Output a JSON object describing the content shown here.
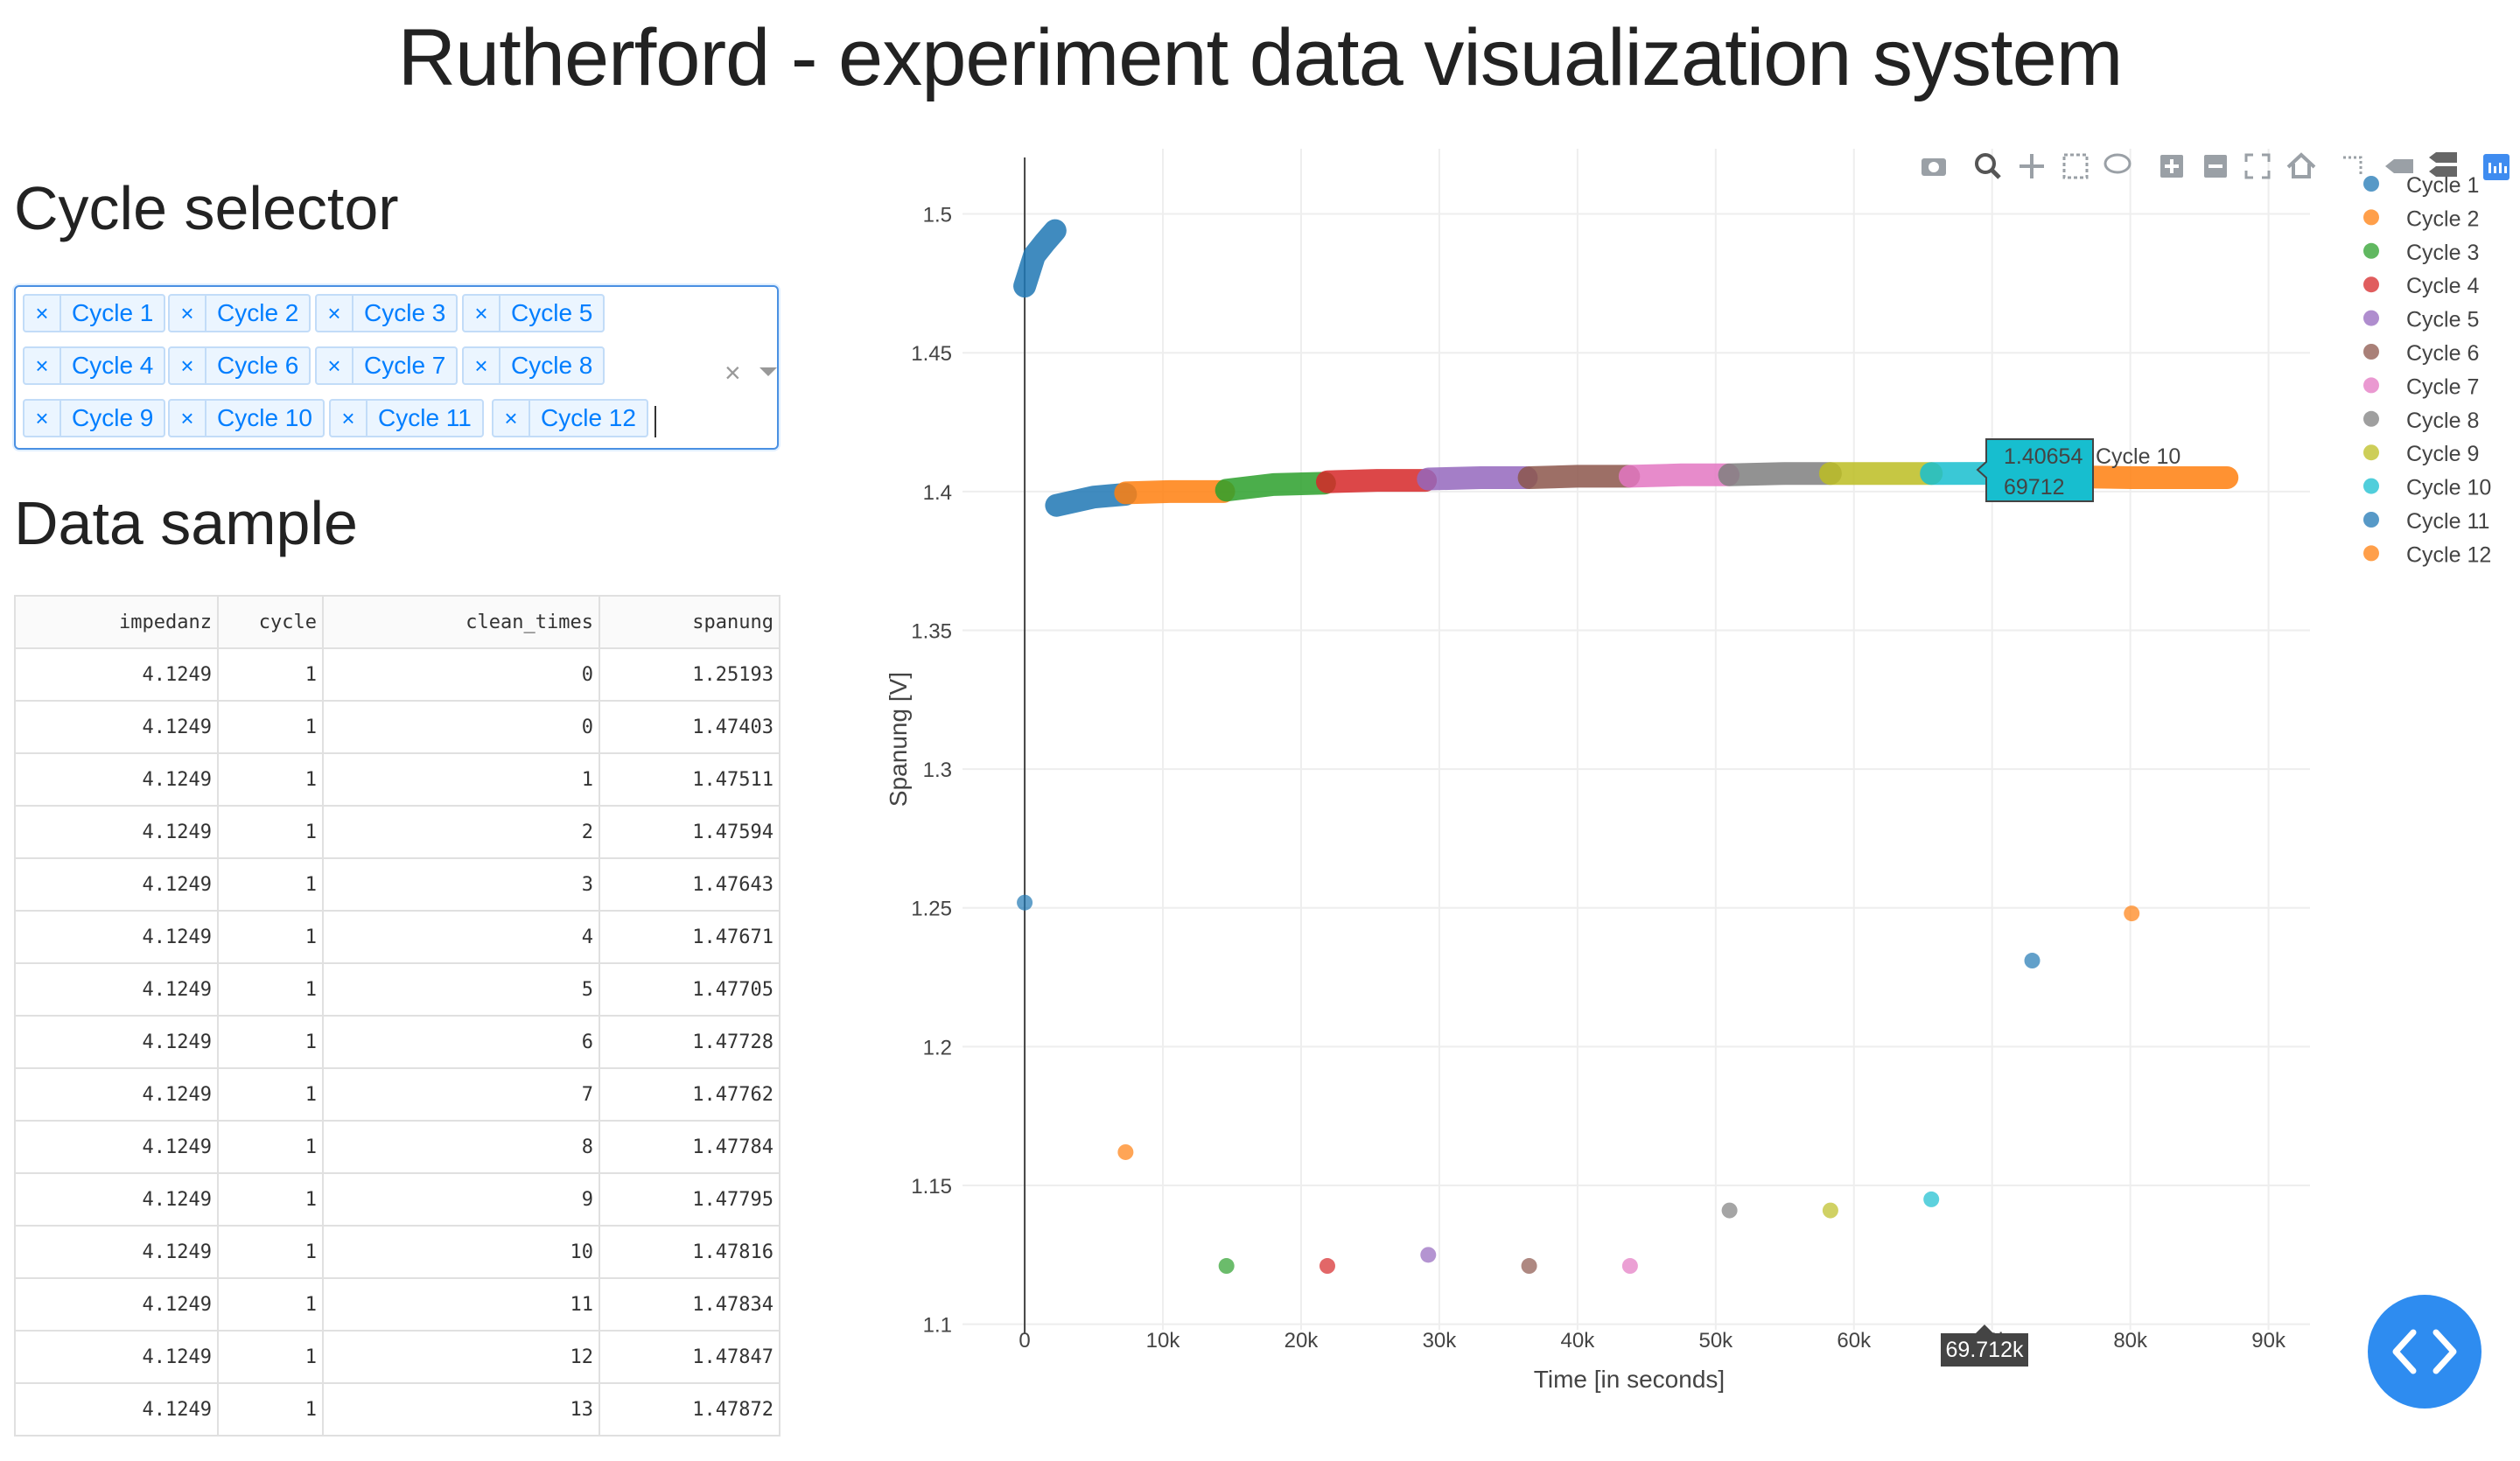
{
  "app_title": "Rutherford - experiment data visualization system",
  "cycle_selector": {
    "heading": "Cycle selector",
    "selected": [
      "Cycle 1",
      "Cycle 2",
      "Cycle 3",
      "Cycle 5",
      "Cycle 4",
      "Cycle 6",
      "Cycle 7",
      "Cycle 8",
      "Cycle 9",
      "Cycle 10",
      "Cycle 11",
      "Cycle 12"
    ],
    "remove_glyph": "×",
    "clear_glyph": "×"
  },
  "data_sample": {
    "heading": "Data sample",
    "columns": [
      "impedanz",
      "cycle",
      "clean_times",
      "spanung"
    ],
    "rows": [
      [
        "4.1249",
        "1",
        "0",
        "1.25193"
      ],
      [
        "4.1249",
        "1",
        "0",
        "1.47403"
      ],
      [
        "4.1249",
        "1",
        "1",
        "1.47511"
      ],
      [
        "4.1249",
        "1",
        "2",
        "1.47594"
      ],
      [
        "4.1249",
        "1",
        "3",
        "1.47643"
      ],
      [
        "4.1249",
        "1",
        "4",
        "1.47671"
      ],
      [
        "4.1249",
        "1",
        "5",
        "1.47705"
      ],
      [
        "4.1249",
        "1",
        "6",
        "1.47728"
      ],
      [
        "4.1249",
        "1",
        "7",
        "1.47762"
      ],
      [
        "4.1249",
        "1",
        "8",
        "1.47784"
      ],
      [
        "4.1249",
        "1",
        "9",
        "1.47795"
      ],
      [
        "4.1249",
        "1",
        "10",
        "1.47816"
      ],
      [
        "4.1249",
        "1",
        "11",
        "1.47834"
      ],
      [
        "4.1249",
        "1",
        "12",
        "1.47847"
      ],
      [
        "4.1249",
        "1",
        "13",
        "1.47872"
      ]
    ]
  },
  "plot": {
    "modebar_icons": [
      "camera-icon",
      "zoom-icon",
      "pan-icon",
      "box-select-icon",
      "lasso-icon",
      "zoom-in-icon",
      "zoom-out-icon",
      "autoscale-icon",
      "reset-axes-icon",
      "spike-lines-icon",
      "hover-closest-icon",
      "hover-compare-icon",
      "plotly-logo-icon"
    ],
    "hover_label": {
      "y": "1.40654",
      "x": "69712",
      "series": "Cycle 10",
      "color": "#17becf"
    },
    "x_hover_label": "69.712k"
  },
  "chart_data": {
    "type": "scatter",
    "xlabel": "Time [in seconds]",
    "ylabel": "Spanung [V]",
    "xlim": [
      -4500,
      93000
    ],
    "ylim": [
      1.098,
      1.5235
    ],
    "x_ticks": [
      0,
      10000,
      20000,
      30000,
      40000,
      50000,
      60000,
      70000,
      80000,
      90000
    ],
    "x_tick_labels": [
      "0",
      "10k",
      "20k",
      "30k",
      "40k",
      "50k",
      "60k",
      "70k",
      "80k",
      "90k"
    ],
    "y_ticks": [
      1.1,
      1.15,
      1.2,
      1.25,
      1.3,
      1.35,
      1.4,
      1.45,
      1.5
    ],
    "y_tick_labels": [
      "1.1",
      "1.15",
      "1.2",
      "1.25",
      "1.3",
      "1.35",
      "1.4",
      "1.45",
      "1.5"
    ],
    "grid": true,
    "legend_position": "right",
    "series": [
      {
        "name": "Cycle 1",
        "color": "#1f77b4",
        "start_point": [
          0,
          1.2519
        ],
        "trace": [
          [
            0,
            1.474
          ],
          [
            700,
            1.485
          ],
          [
            1500,
            1.49
          ],
          [
            2200,
            1.494
          ]
        ]
      },
      {
        "name": "Cycle 11",
        "color": "#1f77b4",
        "start_point": [
          72900,
          1.231
        ],
        "trace": [
          [
            2300,
            1.395
          ],
          [
            5000,
            1.398
          ],
          [
            7300,
            1.399
          ]
        ]
      },
      {
        "name": "Cycle 2",
        "color": "#ff7f0e",
        "start_point": [
          7300,
          1.162
        ],
        "trace": [
          [
            7300,
            1.3995
          ],
          [
            10500,
            1.4
          ],
          [
            14400,
            1.4
          ]
        ]
      },
      {
        "name": "Cycle 3",
        "color": "#2ca02c",
        "start_point": [
          14600,
          1.121
        ],
        "trace": [
          [
            14600,
            1.4005
          ],
          [
            18000,
            1.4025
          ],
          [
            21700,
            1.403
          ]
        ]
      },
      {
        "name": "Cycle 4",
        "color": "#d62728",
        "start_point": [
          21900,
          1.121
        ],
        "trace": [
          [
            21900,
            1.4035
          ],
          [
            25500,
            1.404
          ],
          [
            29000,
            1.404
          ]
        ]
      },
      {
        "name": "Cycle 5",
        "color": "#9467bd",
        "start_point": [
          29200,
          1.125
        ],
        "trace": [
          [
            29200,
            1.4045
          ],
          [
            33000,
            1.405
          ],
          [
            36300,
            1.405
          ]
        ]
      },
      {
        "name": "Cycle 6",
        "color": "#8c564b",
        "start_point": [
          36500,
          1.121
        ],
        "trace": [
          [
            36500,
            1.405
          ],
          [
            40000,
            1.4055
          ],
          [
            43700,
            1.4055
          ]
        ]
      },
      {
        "name": "Cycle 7",
        "color": "#e377c2",
        "start_point": [
          43800,
          1.121
        ],
        "trace": [
          [
            43800,
            1.4055
          ],
          [
            47500,
            1.406
          ],
          [
            50900,
            1.406
          ]
        ]
      },
      {
        "name": "Cycle 8",
        "color": "#7f7f7f",
        "start_point": [
          51000,
          1.141
        ],
        "trace": [
          [
            51000,
            1.406
          ],
          [
            55000,
            1.4065
          ],
          [
            58300,
            1.4065
          ]
        ]
      },
      {
        "name": "Cycle 9",
        "color": "#bcbd22",
        "start_point": [
          58300,
          1.141
        ],
        "trace": [
          [
            58300,
            1.4065
          ],
          [
            62000,
            1.4065
          ],
          [
            65600,
            1.4065
          ]
        ]
      },
      {
        "name": "Cycle 10",
        "color": "#17becf",
        "start_point": [
          65600,
          1.145
        ],
        "trace": [
          [
            65600,
            1.4065
          ],
          [
            69712,
            1.40654
          ],
          [
            73000,
            1.4065
          ]
        ]
      },
      {
        "name": "Cycle 12",
        "color": "#ff7f0e",
        "start_point": [
          80100,
          1.248
        ],
        "trace": [
          [
            73000,
            1.4055
          ],
          [
            80100,
            1.405
          ],
          [
            87000,
            1.405
          ]
        ]
      }
    ]
  }
}
